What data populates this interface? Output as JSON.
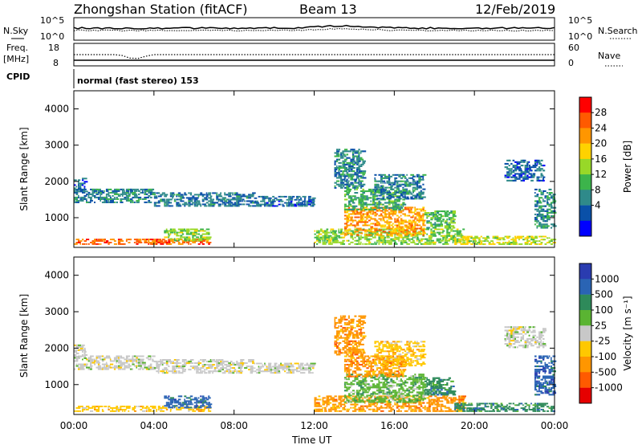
{
  "header": {
    "station": "Zhongshan Station (fitACF)",
    "beam": "Beam 13",
    "date": "12/Feb/2019"
  },
  "strips": {
    "nsky_label": "N.Sky",
    "nsearch_label": "N.Search",
    "freq_label_1": "Freq.",
    "freq_label_2": "[MHz]",
    "nave_label": "Nave",
    "cpid_label": "CPID",
    "cpid_value": "normal (fast stereo) 153",
    "noise_ticks_left": [
      "10^5",
      "10^0"
    ],
    "noise_ticks_right": [
      "10^5",
      "10^0"
    ],
    "freq_ticks": [
      "18",
      "8"
    ],
    "nave_ticks": [
      "60",
      "0"
    ]
  },
  "chart_data": [
    {
      "type": "heatmap",
      "panel": "power",
      "ylabel": "Slant Range [km]",
      "xlabel": "",
      "xlim": [
        0,
        24
      ],
      "ylim": [
        180,
        4500
      ],
      "x_tick_labels": [
        "00:00",
        "04:00",
        "08:00",
        "12:00",
        "16:00",
        "20:00",
        "00:00"
      ],
      "y_ticks": [
        1000,
        2000,
        3000,
        4000
      ],
      "colorbar": {
        "label": "Power [dB]",
        "ticks": [
          "28",
          "24",
          "20",
          "16",
          "12",
          "8",
          "4"
        ],
        "colors": [
          "#ff0000",
          "#ff5a00",
          "#ff9600",
          "#ffd200",
          "#98d828",
          "#3cb44b",
          "#2f8a8a",
          "#0a50a8",
          "#0000ff"
        ]
      },
      "regions": [
        {
          "t0": 0.0,
          "t1": 6.8,
          "r0": 250,
          "r1": 420,
          "level": 26
        },
        {
          "t0": 4.5,
          "t1": 6.8,
          "r0": 350,
          "r1": 700,
          "level": 14
        },
        {
          "t0": 0.0,
          "t1": 4.0,
          "r0": 1400,
          "r1": 1800,
          "level": 7
        },
        {
          "t0": 0.0,
          "t1": 0.6,
          "r0": 1700,
          "r1": 2100,
          "level": 5
        },
        {
          "t0": 4.0,
          "t1": 9.0,
          "r0": 1300,
          "r1": 1700,
          "level": 6
        },
        {
          "t0": 9.0,
          "t1": 12.0,
          "r0": 1300,
          "r1": 1600,
          "level": 5
        },
        {
          "t0": 12.0,
          "t1": 19.5,
          "r0": 250,
          "r1": 700,
          "level": 14
        },
        {
          "t0": 13.5,
          "t1": 17.5,
          "r0": 500,
          "r1": 1300,
          "level": 22
        },
        {
          "t0": 13.5,
          "t1": 16.5,
          "r0": 1200,
          "r1": 1800,
          "level": 10
        },
        {
          "t0": 13.0,
          "t1": 14.5,
          "r0": 1800,
          "r1": 2900,
          "level": 7
        },
        {
          "t0": 15.0,
          "t1": 17.5,
          "r0": 1500,
          "r1": 2200,
          "level": 7
        },
        {
          "t0": 17.5,
          "t1": 19.0,
          "r0": 700,
          "r1": 1200,
          "level": 12
        },
        {
          "t0": 19.0,
          "t1": 24.0,
          "r0": 250,
          "r1": 500,
          "level": 16
        },
        {
          "t0": 21.5,
          "t1": 23.5,
          "r0": 2000,
          "r1": 2600,
          "level": 5
        },
        {
          "t0": 23.0,
          "t1": 24.0,
          "r0": 700,
          "r1": 1800,
          "level": 8
        }
      ]
    },
    {
      "type": "heatmap",
      "panel": "velocity",
      "ylabel": "Slant Range [km]",
      "xlabel": "Time UT",
      "xlim": [
        0,
        24
      ],
      "ylim": [
        180,
        4500
      ],
      "x_tick_labels": [
        "00:00",
        "04:00",
        "08:00",
        "12:00",
        "16:00",
        "20:00",
        "00:00"
      ],
      "y_ticks": [
        1000,
        2000,
        3000,
        4000
      ],
      "colorbar": {
        "label": "Velocity [m s⁻¹]",
        "ticks": [
          "1000",
          "500",
          "100",
          "25",
          "-25",
          "-100",
          "-500",
          "-1000"
        ],
        "colors": [
          "#2a3cb0",
          "#2a64b4",
          "#2e8a5a",
          "#5ab432",
          "#c8c8c8",
          "#ffc800",
          "#ff9600",
          "#ff5a00",
          "#e60000"
        ]
      },
      "regions": [
        {
          "t0": 0.0,
          "t1": 6.8,
          "r0": 250,
          "r1": 420,
          "level": 5
        },
        {
          "t0": 4.5,
          "t1": 6.8,
          "r0": 350,
          "r1": 700,
          "level": 1
        },
        {
          "t0": 0.0,
          "t1": 4.0,
          "r0": 1400,
          "r1": 1800,
          "level": 4
        },
        {
          "t0": 0.0,
          "t1": 0.6,
          "r0": 1700,
          "r1": 2100,
          "level": 4
        },
        {
          "t0": 4.0,
          "t1": 9.0,
          "r0": 1300,
          "r1": 1700,
          "level": 4
        },
        {
          "t0": 9.0,
          "t1": 12.0,
          "r0": 1300,
          "r1": 1600,
          "level": 4
        },
        {
          "t0": 12.0,
          "t1": 19.5,
          "r0": 250,
          "r1": 700,
          "level": 6
        },
        {
          "t0": 13.5,
          "t1": 17.5,
          "r0": 500,
          "r1": 1300,
          "level": 3
        },
        {
          "t0": 13.5,
          "t1": 16.5,
          "r0": 1200,
          "r1": 1800,
          "level": 6
        },
        {
          "t0": 13.0,
          "t1": 14.5,
          "r0": 1800,
          "r1": 2900,
          "level": 6
        },
        {
          "t0": 15.0,
          "t1": 17.5,
          "r0": 1500,
          "r1": 2200,
          "level": 5
        },
        {
          "t0": 17.5,
          "t1": 19.0,
          "r0": 700,
          "r1": 1200,
          "level": 2
        },
        {
          "t0": 19.0,
          "t1": 24.0,
          "r0": 250,
          "r1": 500,
          "level": 2
        },
        {
          "t0": 21.5,
          "t1": 23.5,
          "r0": 2000,
          "r1": 2600,
          "level": 4
        },
        {
          "t0": 23.0,
          "t1": 24.0,
          "r0": 700,
          "r1": 1800,
          "level": 1
        }
      ]
    }
  ]
}
